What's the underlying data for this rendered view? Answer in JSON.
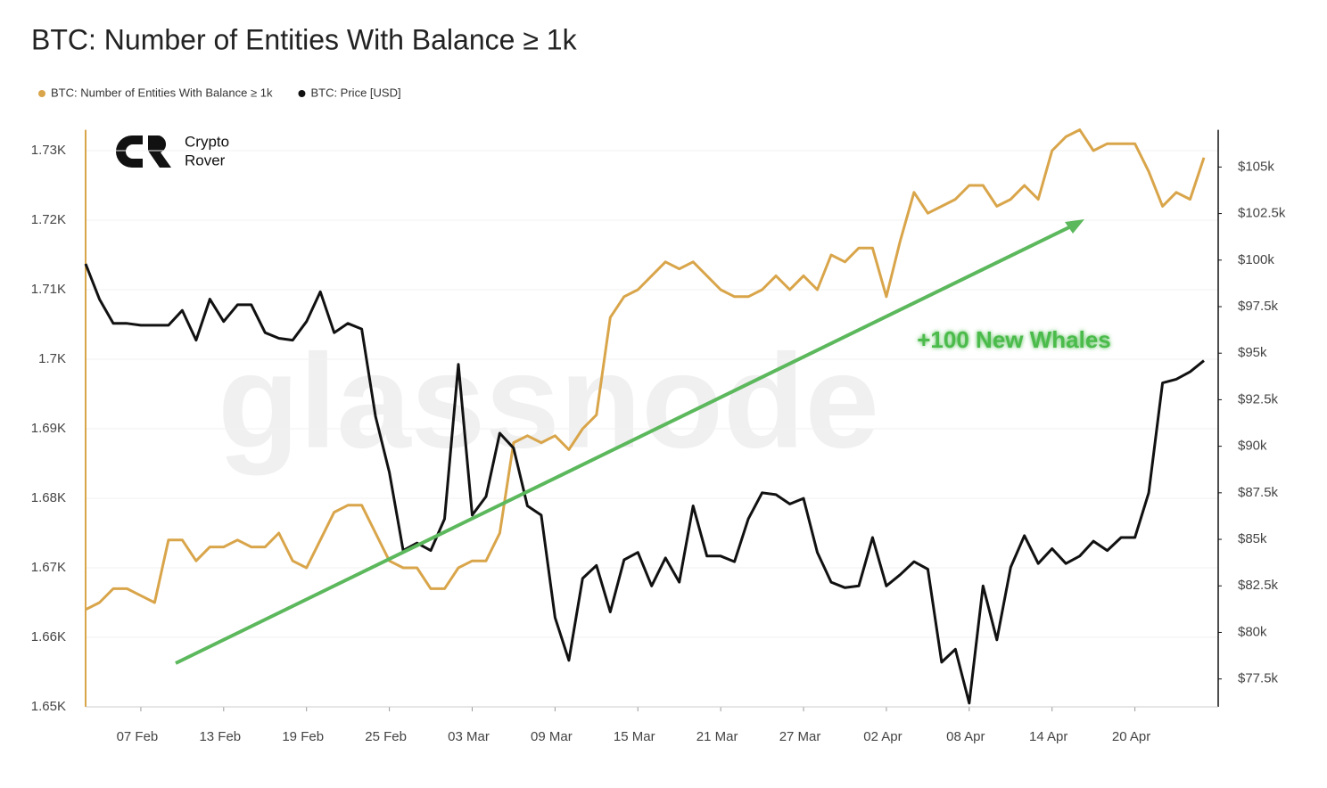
{
  "chart_data": {
    "type": "line",
    "title": "BTC: Number of Entities With Balance ≥ 1k",
    "watermark": "glassnode",
    "logo": [
      "Crypto",
      "Rover"
    ],
    "annotation": "+100 New Whales",
    "grid": true,
    "x": [
      "03 Feb",
      "04 Feb",
      "05 Feb",
      "06 Feb",
      "07 Feb",
      "08 Feb",
      "09 Feb",
      "10 Feb",
      "11 Feb",
      "12 Feb",
      "13 Feb",
      "14 Feb",
      "15 Feb",
      "16 Feb",
      "17 Feb",
      "18 Feb",
      "19 Feb",
      "20 Feb",
      "21 Feb",
      "22 Feb",
      "23 Feb",
      "24 Feb",
      "25 Feb",
      "26 Feb",
      "27 Feb",
      "28 Feb",
      "01 Mar",
      "02 Mar",
      "03 Mar",
      "04 Mar",
      "05 Mar",
      "06 Mar",
      "07 Mar",
      "08 Mar",
      "09 Mar",
      "10 Mar",
      "11 Mar",
      "12 Mar",
      "13 Mar",
      "14 Mar",
      "15 Mar",
      "16 Mar",
      "17 Mar",
      "18 Mar",
      "19 Mar",
      "20 Mar",
      "21 Mar",
      "22 Mar",
      "23 Mar",
      "24 Mar",
      "25 Mar",
      "26 Mar",
      "27 Mar",
      "28 Mar",
      "29 Mar",
      "30 Mar",
      "31 Mar",
      "01 Apr",
      "02 Apr",
      "03 Apr",
      "04 Apr",
      "05 Apr",
      "06 Apr",
      "07 Apr",
      "08 Apr",
      "09 Apr",
      "10 Apr",
      "11 Apr",
      "12 Apr",
      "13 Apr",
      "14 Apr",
      "15 Apr",
      "16 Apr",
      "17 Apr",
      "18 Apr",
      "19 Apr",
      "20 Apr",
      "21 Apr",
      "22 Apr",
      "23 Apr",
      "24 Apr",
      "25 Apr"
    ],
    "xticks": [
      "07 Feb",
      "13 Feb",
      "19 Feb",
      "25 Feb",
      "03 Mar",
      "09 Mar",
      "15 Mar",
      "21 Mar",
      "27 Mar",
      "02 Apr",
      "08 Apr",
      "14 Apr",
      "20 Apr"
    ],
    "ylim": [
      1650,
      1733
    ],
    "yticks": [
      {
        "value": 1650,
        "label": "1.65K"
      },
      {
        "value": 1660,
        "label": "1.66K"
      },
      {
        "value": 1670,
        "label": "1.67K"
      },
      {
        "value": 1680,
        "label": "1.68K"
      },
      {
        "value": 1690,
        "label": "1.69K"
      },
      {
        "value": 1700,
        "label": "1.7K"
      },
      {
        "value": 1710,
        "label": "1.71K"
      },
      {
        "value": 1720,
        "label": "1.72K"
      },
      {
        "value": 1730,
        "label": "1.73K"
      }
    ],
    "y2lim": [
      76000,
      107000
    ],
    "y2ticks": [
      {
        "value": 77500,
        "label": "$77.5k"
      },
      {
        "value": 80000,
        "label": "$80k"
      },
      {
        "value": 82500,
        "label": "$82.5k"
      },
      {
        "value": 85000,
        "label": "$85k"
      },
      {
        "value": 87500,
        "label": "$87.5k"
      },
      {
        "value": 90000,
        "label": "$90k"
      },
      {
        "value": 92500,
        "label": "$92.5k"
      },
      {
        "value": 95000,
        "label": "$95k"
      },
      {
        "value": 97500,
        "label": "$97.5k"
      },
      {
        "value": 100000,
        "label": "$100k"
      },
      {
        "value": 102500,
        "label": "$102.5k"
      },
      {
        "value": 105000,
        "label": "$105k"
      }
    ],
    "series": [
      {
        "name": "BTC: Number of Entities With Balance ≥ 1k",
        "color": "#d9a54a",
        "values": [
          1664,
          1665,
          1667,
          1667,
          1666,
          1665,
          1674,
          1674,
          1671,
          1673,
          1673,
          1674,
          1673,
          1673,
          1675,
          1671,
          1670,
          1674,
          1678,
          1679,
          1679,
          1675,
          1671,
          1670,
          1670,
          1667,
          1667,
          1670,
          1671,
          1671,
          1675,
          1688,
          1689,
          1688,
          1689,
          1687,
          1690,
          1692,
          1706,
          1709,
          1710,
          1712,
          1714,
          1713,
          1714,
          1712,
          1710,
          1709,
          1709,
          1710,
          1712,
          1710,
          1712,
          1710,
          1715,
          1714,
          1716,
          1716,
          1709,
          1717,
          1724,
          1721,
          1722,
          1723,
          1725,
          1725,
          1722,
          1723,
          1725,
          1723,
          1730,
          1732,
          1733,
          1730,
          1731,
          1731,
          1731,
          1727,
          1722,
          1724,
          1723,
          1729
        ]
      },
      {
        "name": "BTC: Price [USD]",
        "color": "#111111",
        "axis": "y2",
        "values": [
          99800,
          97900,
          96600,
          96600,
          96500,
          96500,
          96500,
          97300,
          95700,
          97900,
          96700,
          97600,
          97600,
          96100,
          95800,
          95700,
          96700,
          98300,
          96100,
          96600,
          96300,
          91600,
          88600,
          84400,
          84800,
          84400,
          86100,
          94400,
          86300,
          87300,
          90700,
          89900,
          86800,
          86300,
          80800,
          78500,
          82900,
          83600,
          81100,
          83900,
          84300,
          82500,
          84000,
          82700,
          86800,
          84100,
          84100,
          83800,
          86100,
          87500,
          87400,
          86900,
          87200,
          84300,
          82700,
          82400,
          82500,
          85100,
          82500,
          83100,
          83800,
          83400,
          78400,
          79100,
          76200,
          82500,
          79600,
          83500,
          85200,
          83700,
          84500,
          83700,
          84100,
          84900,
          84400,
          85100,
          85100,
          87500,
          93400,
          93600,
          94000,
          94600
        ]
      }
    ]
  }
}
